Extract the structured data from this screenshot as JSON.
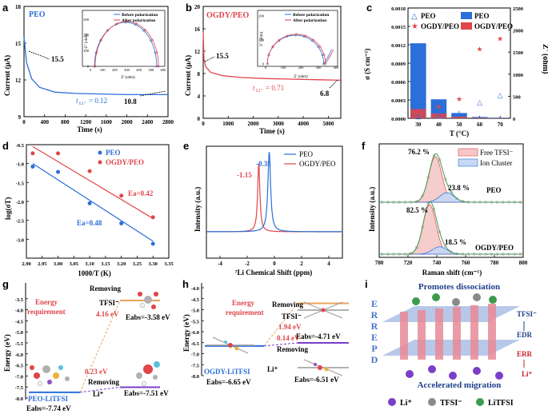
{
  "colors": {
    "blue": "#2b6fd8",
    "red": "#e0454a",
    "purple": "#7a3fc8",
    "orange": "#e8a45a",
    "darkblue": "#1e3f8a",
    "green": "#3e9a4c",
    "gray": "#8a8a8a",
    "darkred": "#c81d25"
  },
  "panels": {
    "a": {
      "letter": "a",
      "title": "PEO",
      "ylabel": "Current (μA)",
      "xlabel": "Time (s)",
      "initial": "15.5",
      "final": "10.8",
      "t_label": "t",
      "t_sub": "Li⁺",
      "t_value": "= 0.12",
      "inset": {
        "legend1": "Before polarization",
        "legend2": "After polarization",
        "xlabel": "Z' (ohm)",
        "ylabel": "-Z'' (ohm)"
      }
    },
    "b": {
      "letter": "b",
      "title": "OGDY/PEO",
      "ylabel": "Current (μA)",
      "xlabel": "Time (s)",
      "initial": "15.5",
      "final": "6.8",
      "t_label": "t",
      "t_sub": "Li⁺",
      "t_value": "= 0.71",
      "inset": {
        "legend1": "Before polarization",
        "legend2": "After polarization",
        "xlabel": "Z' (ohm)",
        "ylabel": "Z'' (ohm)"
      }
    },
    "c": {
      "letter": "c",
      "ylabel_left": "σ (S cm⁻¹)",
      "ylabel_right": "Z' (ohm)",
      "xlabel": "T (°C)",
      "legend_a": "PEO",
      "legend_b": "OGDY/PEO",
      "legend_c": "PEO",
      "legend_d": "OGDY/PEO"
    },
    "d": {
      "letter": "d",
      "ylabel": "log(σT)",
      "xlabel": "1000/T (K)",
      "legend1": "PEO",
      "legend2": "OGDY/PEO",
      "ea1": "Ea=0.48",
      "ea2": "Ea=0.42"
    },
    "e": {
      "letter": "e",
      "ylabel": "Intensity (a.u.)",
      "xlabel": "⁷Li Chemical Shift (ppm)",
      "legend1": "PEO",
      "legend2": "OGDY/PEO",
      "peak1": "-0.38",
      "peak2": "-1.15"
    },
    "f": {
      "letter": "f",
      "ylabel": "Intensity (a.u.)",
      "xlabel": "Raman shift (cm⁻¹)",
      "legend1": "Free TFSI⁻",
      "legend2": "Ion Cluster",
      "top_free": "76.2 %",
      "top_cluster": "23.8 %",
      "top_name": "PEO",
      "bot_free": "82.5 %",
      "bot_cluster": "18.5 %",
      "bot_name": "OGDY/PEO"
    },
    "g": {
      "letter": "g",
      "ylabel": "Energy (eV)",
      "energy_req": "Energy\nrequirement",
      "removing1": "Removing",
      "species1": "TFSI⁻",
      "energy1": "4.16 eV",
      "eabs1": "Eabs=-3.58 eV",
      "energy2": "0.23 eV",
      "removing2": "Removing",
      "species2": "Li⁺",
      "eabs2": "Eabs=-7.51 eV",
      "complex": "PEO-LiTFSI",
      "eabs0": "Eabs=-7.74 eV"
    },
    "h": {
      "letter": "h",
      "ylabel": "Energy (eV)",
      "energy_req": "Energy\nrequirement",
      "removing1": "Removing",
      "species1": "TFSI⁻",
      "energy1": "1.94 eV",
      "eabs1": "Eabs=-4.71 eV",
      "energy2": "0.14 eV",
      "removing2": "Removing",
      "species2": "Li⁺",
      "eabs2": "Eabs=-6.51 eV",
      "complex": "OGDY-LiTFSI",
      "eabs0": "Eabs=-6.65 eV"
    },
    "i": {
      "letter": "i",
      "title_top": "Promotes dissociation",
      "title_bottom": "Accelerated migration",
      "side": [
        "E",
        "R",
        "R",
        "E",
        "P",
        "D"
      ],
      "tfsi": "TFSI⁻",
      "edr": "EDR",
      "err": "ERR",
      "li": "Li⁺",
      "legend": [
        "Li⁺",
        "TFSI⁻",
        "LiTFSI"
      ]
    }
  },
  "chart_data": [
    {
      "panel": "a",
      "type": "line",
      "xlim": [
        0,
        2800
      ],
      "ylim": [
        9,
        18
      ],
      "xticks": [
        "0",
        "400",
        "800",
        "1200",
        "1600",
        "2000",
        "2400",
        "2800"
      ],
      "yticks": [
        "9",
        "12",
        "15",
        "18"
      ],
      "x": [
        0,
        50,
        150,
        300,
        600,
        1000,
        1500,
        2000,
        2500,
        2800
      ],
      "y": [
        15.5,
        13.4,
        12.1,
        11.4,
        11.0,
        10.9,
        10.85,
        10.8,
        10.8,
        10.8
      ],
      "inset": {
        "type": "line",
        "xlim": [
          0,
          600
        ],
        "ylim": [
          0,
          350
        ],
        "xticks": [
          "0",
          "100",
          "200",
          "300",
          "400",
          "500",
          "600"
        ],
        "yticks": [
          "0",
          "100",
          "200",
          "300"
        ],
        "series": [
          {
            "name": "Before polarization",
            "center": 290,
            "radius": 270,
            "start": 20
          },
          {
            "name": "After polarization",
            "center": 300,
            "radius": 275,
            "start": 25
          }
        ]
      }
    },
    {
      "panel": "b",
      "type": "line",
      "xlim": [
        0,
        5500
      ],
      "ylim": [
        0,
        20
      ],
      "xticks": [
        "0",
        "1000",
        "2000",
        "3000",
        "4000",
        "5000"
      ],
      "yticks": [
        "0",
        "4",
        "8",
        "12",
        "16",
        "20"
      ],
      "x": [
        0,
        30,
        100,
        300,
        800,
        1500,
        2500,
        3500,
        4500,
        5500
      ],
      "y": [
        15.5,
        10.6,
        9.2,
        8.2,
        7.6,
        7.3,
        7.1,
        7.0,
        6.9,
        6.8
      ],
      "inset": {
        "type": "line",
        "xlim": [
          0,
          400
        ],
        "ylim": [
          0,
          200
        ],
        "xticks": [
          "0",
          "100",
          "200",
          "300",
          "400"
        ],
        "yticks": [
          "0",
          "100",
          "200"
        ],
        "series": [
          {
            "name": "Before polarization",
            "center": 170,
            "radius": 160,
            "start": 10
          },
          {
            "name": "After polarization",
            "center": 175,
            "radius": 165,
            "start": 10
          }
        ]
      }
    },
    {
      "panel": "c",
      "type": "bar",
      "categories": [
        "30",
        "40",
        "50",
        "60",
        "70"
      ],
      "ylim_left": [
        0,
        0.0018
      ],
      "ylim_right": [
        0,
        2500
      ],
      "yticks_left": [
        "0.0000",
        "0.0003",
        "0.0006",
        "0.0009",
        "0.0012",
        "0.0015",
        "0.0018"
      ],
      "yticks_right": [
        "0",
        "500",
        "1000",
        "1500",
        "2000",
        "2500"
      ],
      "series": [
        {
          "name": "PEO",
          "kind": "bar",
          "values": [
            1700,
            430,
            120,
            30,
            15
          ]
        },
        {
          "name": "OGDY/PEO",
          "kind": "bar",
          "values": [
            210,
            110,
            35,
            10,
            5
          ]
        },
        {
          "name": "PEO",
          "kind": "scatter",
          "values": [
            4e-05,
            5e-05,
            9e-05,
            0.00026,
            0.00038
          ]
        },
        {
          "name": "OGDY/PEO",
          "kind": "scatter",
          "values": [
            0.0001,
            0.00019,
            0.00031,
            0.00113,
            0.0013
          ]
        }
      ]
    },
    {
      "panel": "d",
      "type": "scatter",
      "xlim": [
        2.9,
        3.35
      ],
      "ylim": [
        -3.5,
        -0.5
      ],
      "xticks": [
        "2.90",
        "2.95",
        "3.00",
        "3.05",
        "3.10",
        "3.15",
        "3.20",
        "3.25",
        "3.30",
        "3.35"
      ],
      "yticks": [
        "-3.0",
        "-2.5",
        "-2.0",
        "-1.5",
        "-1.0",
        "-0.5"
      ],
      "series": [
        {
          "name": "PEO",
          "x": [
            2.92,
            3.0,
            3.1,
            3.2,
            3.3
          ],
          "y": [
            -1.08,
            -1.22,
            -2.05,
            -2.58,
            -3.12
          ],
          "fit": [
            [
              2.92,
              -1.0
            ],
            [
              3.3,
              -3.05
            ]
          ]
        },
        {
          "name": "OGDY/PEO",
          "x": [
            2.92,
            3.0,
            3.1,
            3.2,
            3.3
          ],
          "y": [
            -0.73,
            -0.73,
            -1.2,
            -1.85,
            -2.42
          ],
          "fit": [
            [
              2.92,
              -0.55
            ],
            [
              3.3,
              -2.45
            ]
          ]
        }
      ]
    },
    {
      "panel": "e",
      "type": "line",
      "xlim": [
        -5,
        5
      ],
      "xticks": [
        "-4",
        "-2",
        "0",
        "2",
        "4"
      ],
      "series": [
        {
          "name": "PEO",
          "peak": -0.38,
          "width": 0.12
        },
        {
          "name": "OGDY/PEO",
          "peak": -1.15,
          "width": 0.1
        }
      ]
    },
    {
      "panel": "f",
      "type": "line",
      "xlim": [
        700,
        800
      ],
      "xticks": [
        "700",
        "720",
        "740",
        "760",
        "780",
        "800"
      ],
      "series": [
        {
          "name": "PEO Free TFSI-",
          "peak": 739,
          "fraction": 76.2
        },
        {
          "name": "PEO Ion Cluster",
          "peak": 747,
          "fraction": 23.8
        },
        {
          "name": "OGDY/PEO Free TFSI-",
          "peak": 735,
          "fraction": 82.5
        },
        {
          "name": "OGDY/PEO Ion Cluster",
          "peak": 742,
          "fraction": 18.5
        }
      ]
    },
    {
      "panel": "g",
      "type": "line",
      "ylim": [
        -8,
        -3
      ],
      "yticks": [
        "-3.5",
        "-4.0",
        "-4.5",
        "-5.0",
        "-5.5",
        "-6.0",
        "-6.5",
        "-7.0",
        "-7.5",
        "-8.0"
      ],
      "levels": {
        "initial": -7.74,
        "remove_tfsi": -3.58,
        "remove_li": -7.51
      }
    },
    {
      "panel": "h",
      "type": "line",
      "ylim": [
        -8,
        -4
      ],
      "yticks": [
        "-4.0",
        "-4.5",
        "-5.0",
        "-5.5",
        "-6.0",
        "-6.5",
        "-7.0",
        "-7.5",
        "-8.0"
      ],
      "levels": {
        "initial": -6.65,
        "remove_tfsi": -4.71,
        "remove_li": -6.51
      }
    }
  ]
}
